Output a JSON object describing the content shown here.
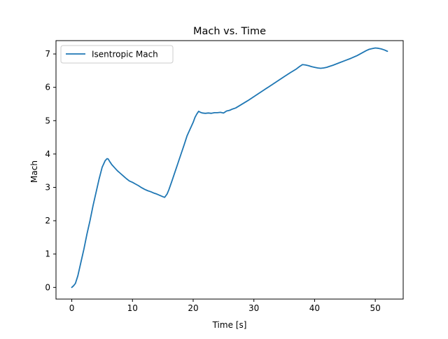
{
  "chart_data": {
    "type": "line",
    "title": "Mach vs. Time",
    "xlabel": "Time [s]",
    "ylabel": "Mach",
    "xlim": [
      -2.6,
      54.6
    ],
    "ylim": [
      -0.35,
      7.4
    ],
    "xticks": [
      0,
      10,
      20,
      30,
      40,
      50
    ],
    "yticks": [
      0,
      1,
      2,
      3,
      4,
      5,
      6,
      7
    ],
    "grid": false,
    "legend": {
      "placement": "top-left",
      "entries": [
        "Isentropic Mach"
      ]
    },
    "series": [
      {
        "name": "Isentropic Mach",
        "color": "#1f77b4",
        "x": [
          0,
          0.3,
          0.6,
          1.0,
          1.5,
          2.0,
          2.5,
          3.0,
          3.5,
          4.0,
          4.5,
          5.0,
          5.5,
          5.8,
          6.0,
          6.3,
          6.6,
          7.0,
          7.5,
          8.0,
          8.5,
          9.0,
          9.5,
          10.0,
          10.5,
          11.0,
          11.5,
          12.0,
          12.5,
          13.0,
          13.5,
          14.0,
          14.5,
          15.0,
          15.3,
          15.7,
          16.0,
          16.5,
          17.0,
          17.5,
          18.0,
          18.5,
          19.0,
          19.5,
          20.0,
          20.3,
          20.6,
          20.9,
          21.2,
          21.5,
          22.0,
          22.5,
          23.0,
          23.5,
          24.0,
          24.5,
          25.0,
          25.5,
          26.0,
          26.5,
          27.0,
          28.0,
          29.0,
          30.0,
          31.0,
          32.0,
          33.0,
          34.0,
          35.0,
          36.0,
          37.0,
          37.5,
          38.0,
          38.5,
          39.0,
          39.5,
          40.0,
          40.5,
          41.0,
          41.5,
          42.0,
          42.5,
          43.0,
          44.0,
          45.0,
          46.0,
          47.0,
          48.0,
          48.5,
          49.0,
          49.5,
          50.0,
          50.5,
          51.0,
          51.5,
          52.0
        ],
        "y": [
          0.0,
          0.05,
          0.12,
          0.35,
          0.75,
          1.15,
          1.6,
          2.0,
          2.45,
          2.85,
          3.25,
          3.6,
          3.8,
          3.86,
          3.85,
          3.76,
          3.68,
          3.6,
          3.5,
          3.42,
          3.34,
          3.26,
          3.19,
          3.15,
          3.1,
          3.05,
          2.99,
          2.94,
          2.9,
          2.87,
          2.83,
          2.8,
          2.76,
          2.72,
          2.7,
          2.8,
          2.93,
          3.19,
          3.46,
          3.73,
          4.0,
          4.27,
          4.55,
          4.75,
          4.95,
          5.1,
          5.2,
          5.28,
          5.25,
          5.23,
          5.22,
          5.23,
          5.22,
          5.24,
          5.24,
          5.25,
          5.23,
          5.29,
          5.31,
          5.35,
          5.38,
          5.49,
          5.6,
          5.72,
          5.84,
          5.96,
          6.08,
          6.2,
          6.32,
          6.44,
          6.55,
          6.62,
          6.68,
          6.67,
          6.65,
          6.62,
          6.6,
          6.58,
          6.57,
          6.58,
          6.6,
          6.63,
          6.66,
          6.73,
          6.8,
          6.87,
          6.95,
          7.05,
          7.1,
          7.14,
          7.16,
          7.18,
          7.17,
          7.15,
          7.12,
          7.08
        ]
      }
    ]
  }
}
